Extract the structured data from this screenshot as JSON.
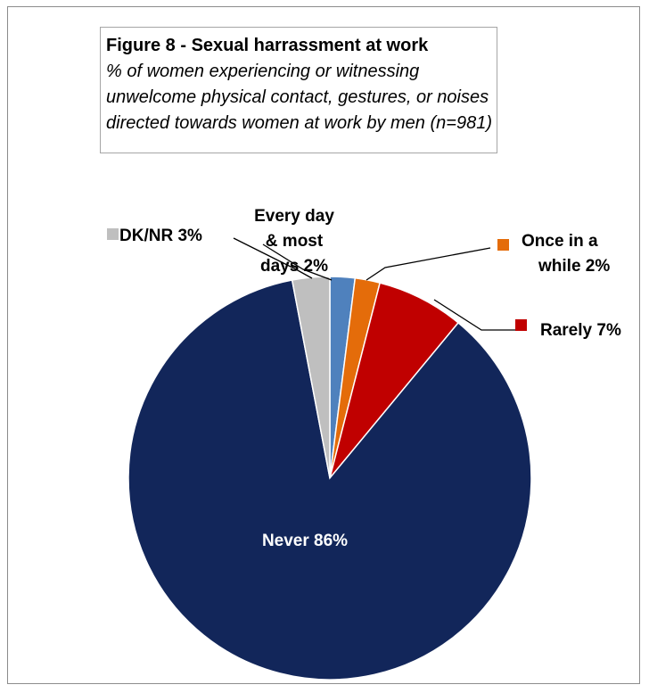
{
  "figure": {
    "title": "Figure 8 - Sexual harrassment at work",
    "subtitle_lines": [
      "% of women experiencing or witnessing",
      "unwelcome physical contact, gestures, or noises",
      "directed towards women at work by men (n=981)"
    ]
  },
  "chart_data": {
    "type": "pie",
    "title": "Figure 8 - Sexual harrassment at work",
    "subtitle": "% of women experiencing or witnessing unwelcome physical contact, gestures, or noises directed towards women at work by men (n=981)",
    "slices": [
      {
        "name": "Every day & most days",
        "label_lines": [
          "Every day",
          "& most",
          "days 2%"
        ],
        "value": 2,
        "color": "#4f81bd"
      },
      {
        "name": "Once in a while",
        "label_lines": [
          "Once in a",
          "while 2%"
        ],
        "value": 2,
        "color": "#e46c0a"
      },
      {
        "name": "Rarely",
        "label_lines": [
          "Rarely 7%"
        ],
        "value": 7,
        "color": "#c00000"
      },
      {
        "name": "Never",
        "label_lines": [
          "Never 86%"
        ],
        "value": 86,
        "color": "#12265a"
      },
      {
        "name": "DK/NR",
        "label_lines": [
          "DK/NR 3%"
        ],
        "value": 3,
        "color": "#bfbfbf"
      }
    ],
    "legend": "data labels with leader lines"
  }
}
